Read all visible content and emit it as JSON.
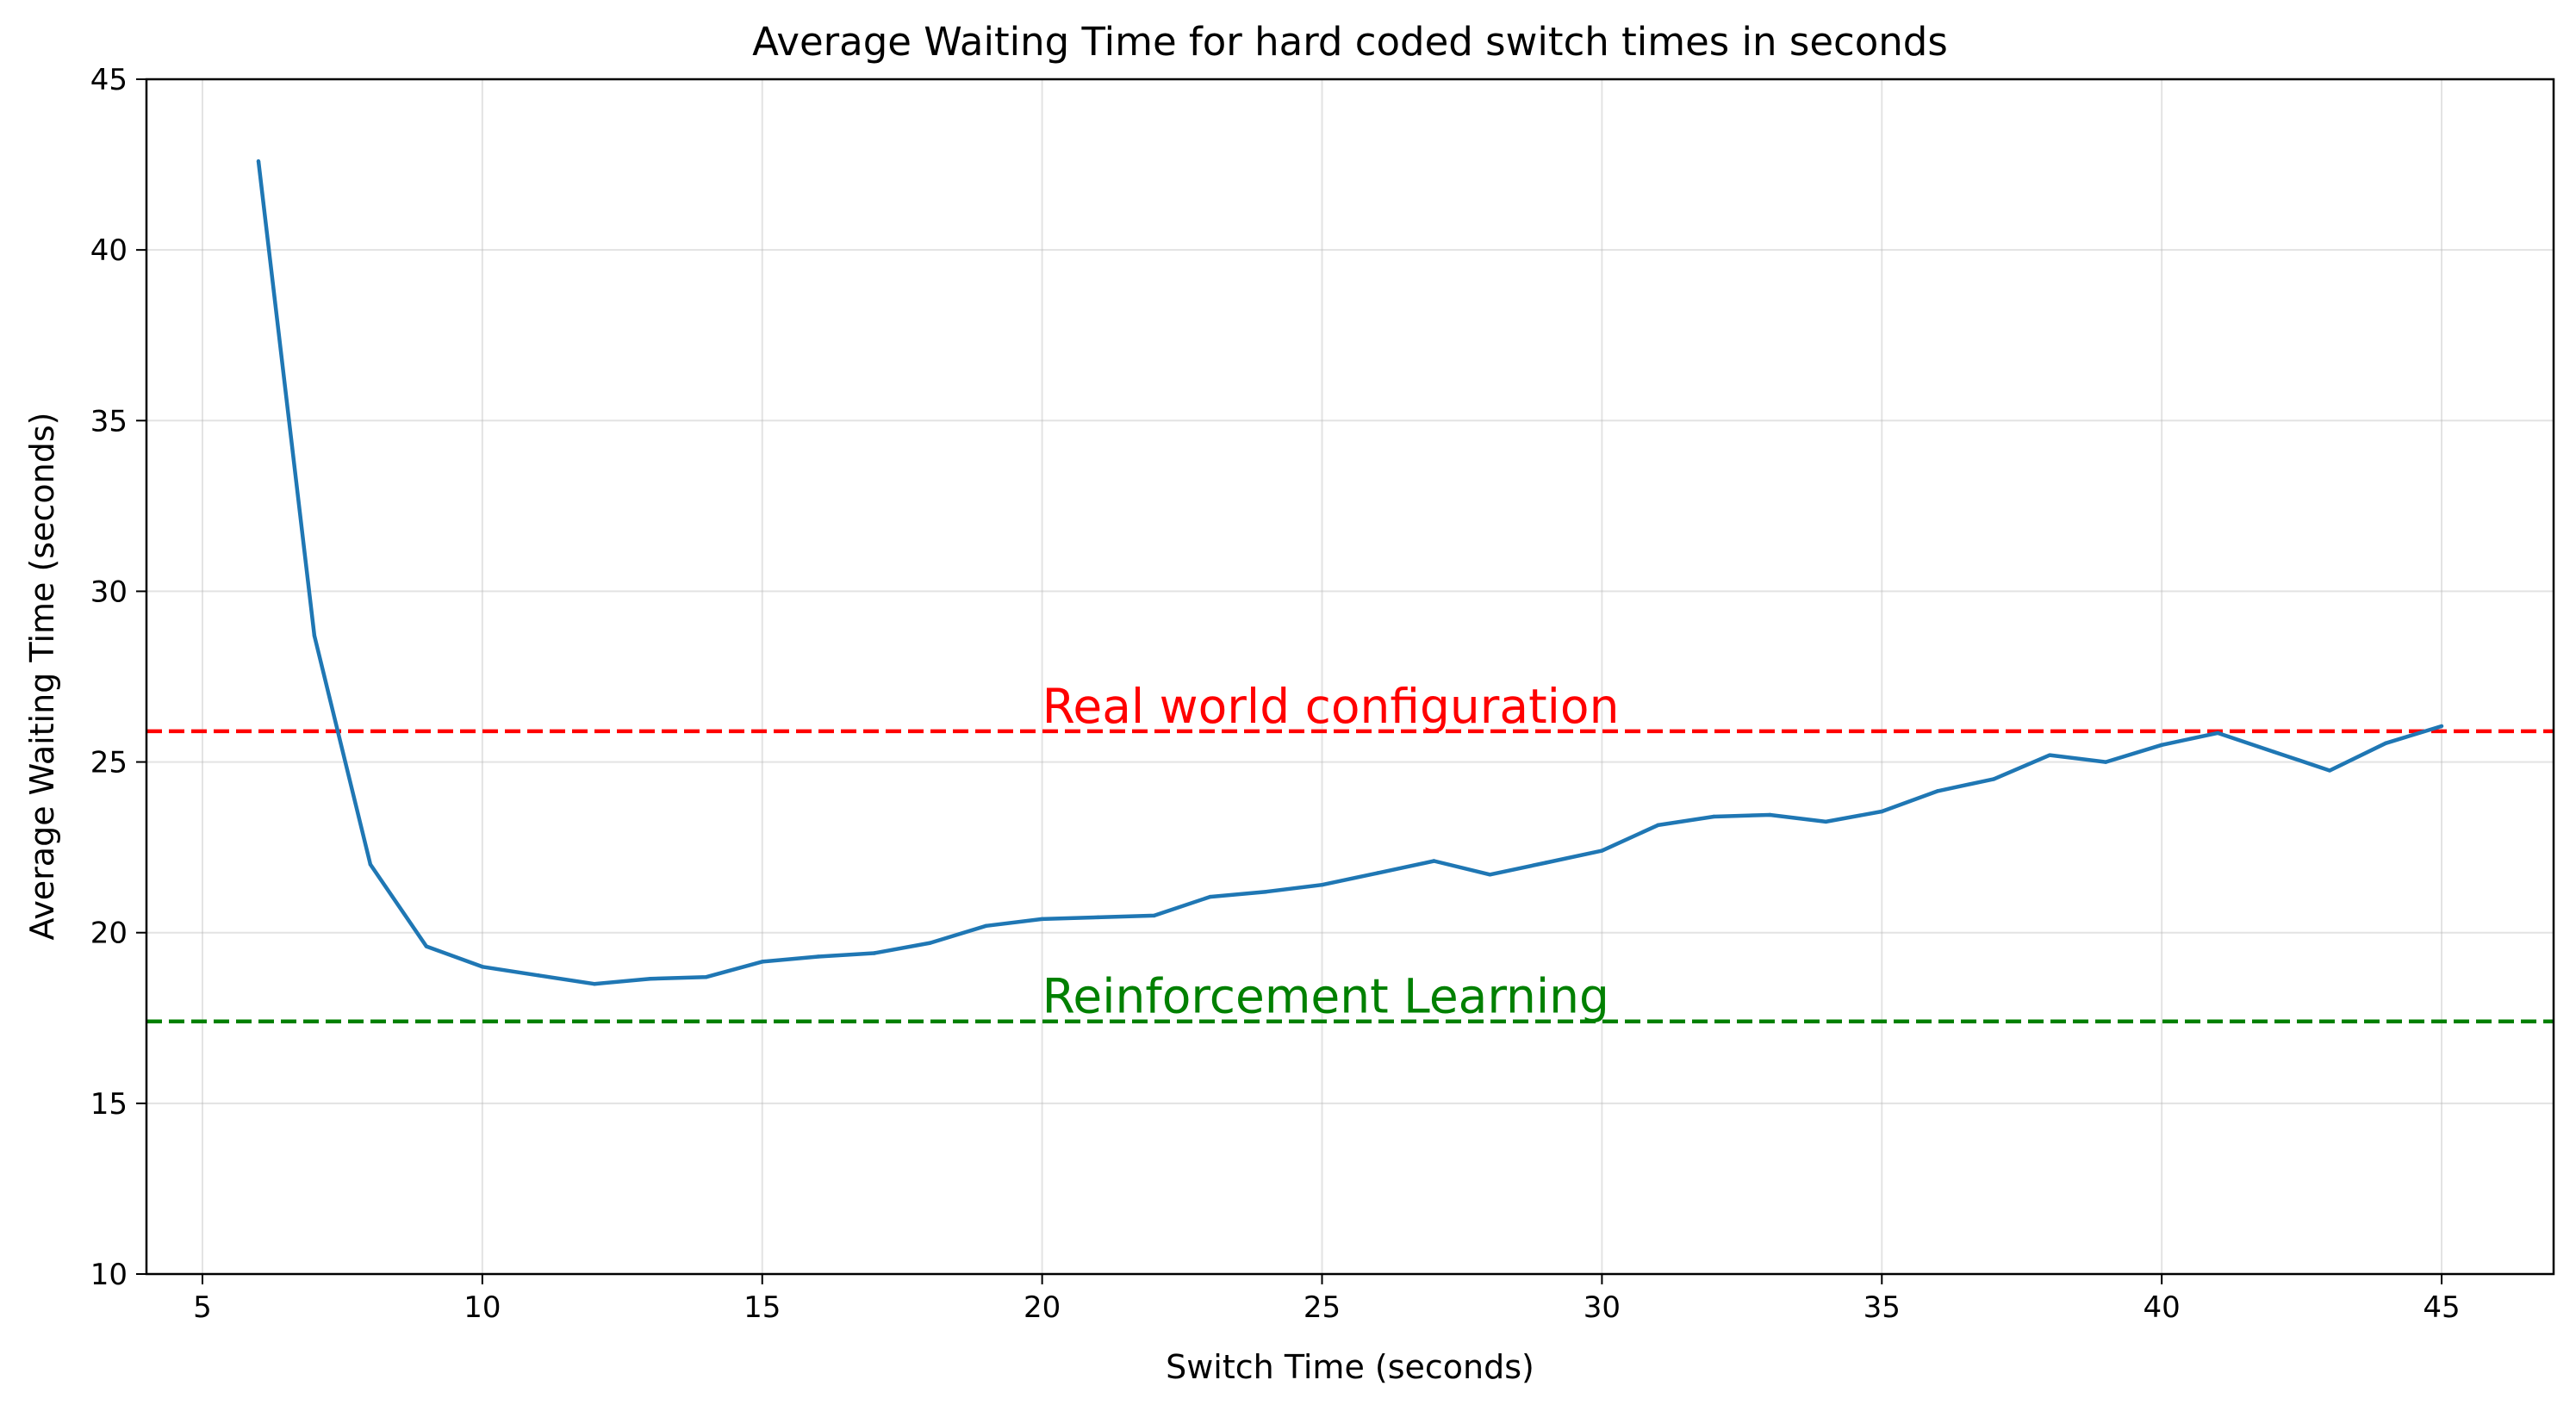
{
  "chart_data": {
    "type": "line",
    "title": "Average Waiting Time for hard coded switch times in seconds",
    "xlabel": "Switch Time (seconds)",
    "ylabel": "Average Waiting Time (seconds)",
    "xlim": [
      4,
      47
    ],
    "ylim": [
      10,
      45
    ],
    "xticks": [
      5,
      10,
      15,
      20,
      25,
      30,
      35,
      40,
      45
    ],
    "yticks": [
      10,
      15,
      20,
      25,
      30,
      35,
      40,
      45
    ],
    "grid": true,
    "series": [
      {
        "color": "#1f77b4",
        "x": [
          6,
          7,
          8,
          9,
          10,
          11,
          12,
          13,
          14,
          15,
          16,
          17,
          18,
          19,
          20,
          21,
          22,
          23,
          24,
          25,
          26,
          27,
          28,
          29,
          30,
          31,
          32,
          33,
          34,
          35,
          36,
          37,
          38,
          39,
          40,
          41,
          42,
          43,
          44,
          45
        ],
        "y": [
          42.6,
          28.7,
          22.0,
          19.6,
          19.0,
          18.75,
          18.5,
          18.65,
          18.7,
          19.15,
          19.3,
          19.4,
          19.7,
          20.2,
          20.4,
          20.45,
          20.5,
          21.05,
          21.2,
          21.4,
          21.75,
          22.1,
          21.7,
          22.05,
          22.4,
          23.15,
          23.4,
          23.45,
          23.25,
          23.55,
          24.15,
          24.5,
          25.2,
          25.0,
          25.5,
          25.85,
          25.3,
          24.75,
          25.55,
          26.05
        ]
      }
    ],
    "reference_lines": [
      {
        "label": "Real world configuration",
        "y": 25.9,
        "color": "#ff0000",
        "label_x": 20
      },
      {
        "label": "Reinforcement Learning",
        "y": 17.4,
        "color": "#008000",
        "label_x": 20
      }
    ]
  }
}
